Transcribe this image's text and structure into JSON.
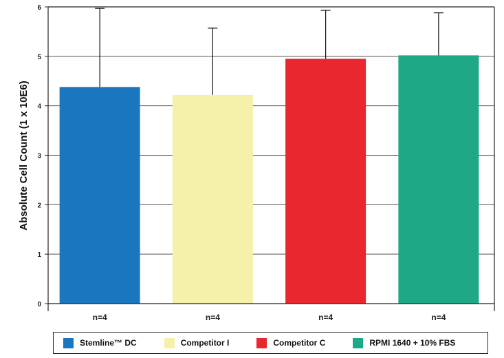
{
  "chart_data": {
    "type": "bar",
    "categories": [
      "Stemline™ DC",
      "Competitor I",
      "Competitor C",
      "RPMI 1640 + 10% FBS"
    ],
    "series": [
      {
        "values": [
          4.38,
          4.22,
          4.95,
          5.02
        ],
        "error_plus": [
          1.59,
          1.35,
          0.98,
          0.86
        ]
      }
    ],
    "colors": [
      "#1a77bf",
      "#f5f0aa",
      "#e8282e",
      "#1ea886"
    ],
    "ylabel": "Absolute Cell Count (1 x 10E6)",
    "yticks": [
      "0",
      "1",
      "2",
      "3",
      "4",
      "5",
      "6"
    ],
    "ylim": [
      0,
      6
    ],
    "bar_annotations": [
      "n=4",
      "n=4",
      "n=4",
      "n=4"
    ],
    "grid": true,
    "legend_position": "bottom"
  }
}
